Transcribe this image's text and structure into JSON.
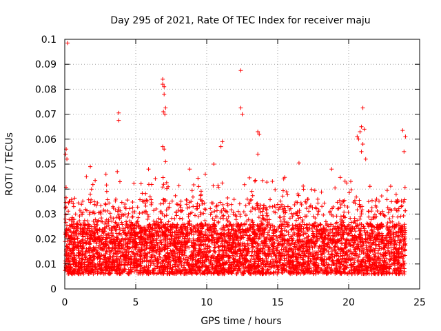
{
  "chart_data": {
    "type": "scatter",
    "title": "Day 295 of 2021, Rate Of TEC Index for receiver maju",
    "xlabel": "GPS time / hours",
    "ylabel": "ROTI / TECUs",
    "xlim": [
      0,
      25
    ],
    "ylim": [
      0,
      0.1
    ],
    "x_ticks": [
      0,
      5,
      10,
      15,
      20,
      25
    ],
    "y_ticks": [
      0,
      0.01,
      0.02,
      0.03,
      0.04,
      0.05,
      0.06,
      0.07,
      0.08,
      0.09,
      0.1
    ],
    "x_tick_labels": [
      "0",
      "5",
      "10",
      "15",
      "20",
      "25"
    ],
    "y_tick_labels": [
      "0",
      "0.01",
      "0.02",
      "0.03",
      "0.04",
      "0.05",
      "0.06",
      "0.07",
      "0.08",
      "0.09",
      "0.1"
    ],
    "grid": true,
    "marker": "+",
    "series_color": "#ff0000",
    "series": [
      {
        "name": "ROTI",
        "outliers": {
          "x": [
            0.2,
            0.1,
            0.15,
            0.05,
            3.8,
            3.8,
            3.7,
            6.9,
            6.9,
            7.0,
            7.0,
            7.1,
            6.95,
            7.05,
            6.9,
            7.0,
            7.1,
            12.4,
            12.4,
            12.5,
            11.1,
            11.0,
            13.6,
            13.7,
            13.6,
            20.6,
            20.8,
            21.0,
            20.9,
            21.1,
            20.7,
            21.0,
            20.9,
            21.2,
            23.8,
            24.0,
            23.9,
            16.5,
            18.8,
            10.5,
            8.8,
            5.9,
            2.9,
            1.8,
            9.9
          ],
          "y": [
            0.0985,
            0.056,
            0.052,
            0.054,
            0.0705,
            0.0675,
            0.047,
            0.084,
            0.082,
            0.081,
            0.078,
            0.0725,
            0.071,
            0.07,
            0.057,
            0.056,
            0.051,
            0.0875,
            0.0725,
            0.07,
            0.059,
            0.057,
            0.063,
            0.062,
            0.054,
            0.061,
            0.063,
            0.0725,
            0.065,
            0.064,
            0.06,
            0.058,
            0.055,
            0.052,
            0.0635,
            0.061,
            0.055,
            0.0505,
            0.048,
            0.05,
            0.048,
            0.048,
            0.046,
            0.049,
            0.046
          ]
        },
        "bulk_range": [
          0.003,
          0.045
        ]
      }
    ]
  }
}
